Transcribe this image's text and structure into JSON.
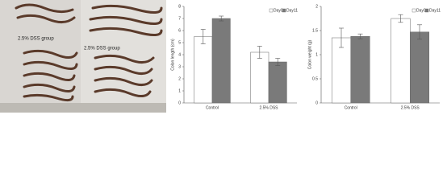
{
  "figure": {
    "labels": [
      "2.5% DSS group",
      "2.5% DSS group"
    ]
  },
  "chart_data": [
    {
      "type": "bar",
      "y_label": "Colon length (cm)",
      "categories": [
        "Control",
        "2.5% DSS"
      ],
      "series": [
        {
          "name": "Day0",
          "color": "#ffffff",
          "values": [
            5.5,
            4.2
          ],
          "errors": [
            0.6,
            0.5
          ]
        },
        {
          "name": "Day11",
          "color": "#7a7a7a",
          "values": [
            7.0,
            3.4
          ],
          "errors": [
            0.2,
            0.3
          ]
        }
      ],
      "ylim": [
        0,
        8
      ],
      "yticks": [
        0,
        1,
        2,
        3,
        4,
        5,
        6,
        7,
        8
      ],
      "legend": "top-right"
    },
    {
      "type": "bar",
      "y_label": "Colon weight (g)",
      "categories": [
        "Control",
        "2.5% DSS"
      ],
      "series": [
        {
          "name": "Day0",
          "color": "#ffffff",
          "values": [
            1.35,
            1.75
          ],
          "errors": [
            0.2,
            0.08
          ]
        },
        {
          "name": "Day11",
          "color": "#7a7a7a",
          "values": [
            1.38,
            1.47
          ],
          "errors": [
            0.05,
            0.15
          ]
        }
      ],
      "ylim": [
        0,
        2
      ],
      "yticks": [
        0,
        0.5,
        1,
        1.5,
        2
      ],
      "legend": "top-right"
    }
  ]
}
